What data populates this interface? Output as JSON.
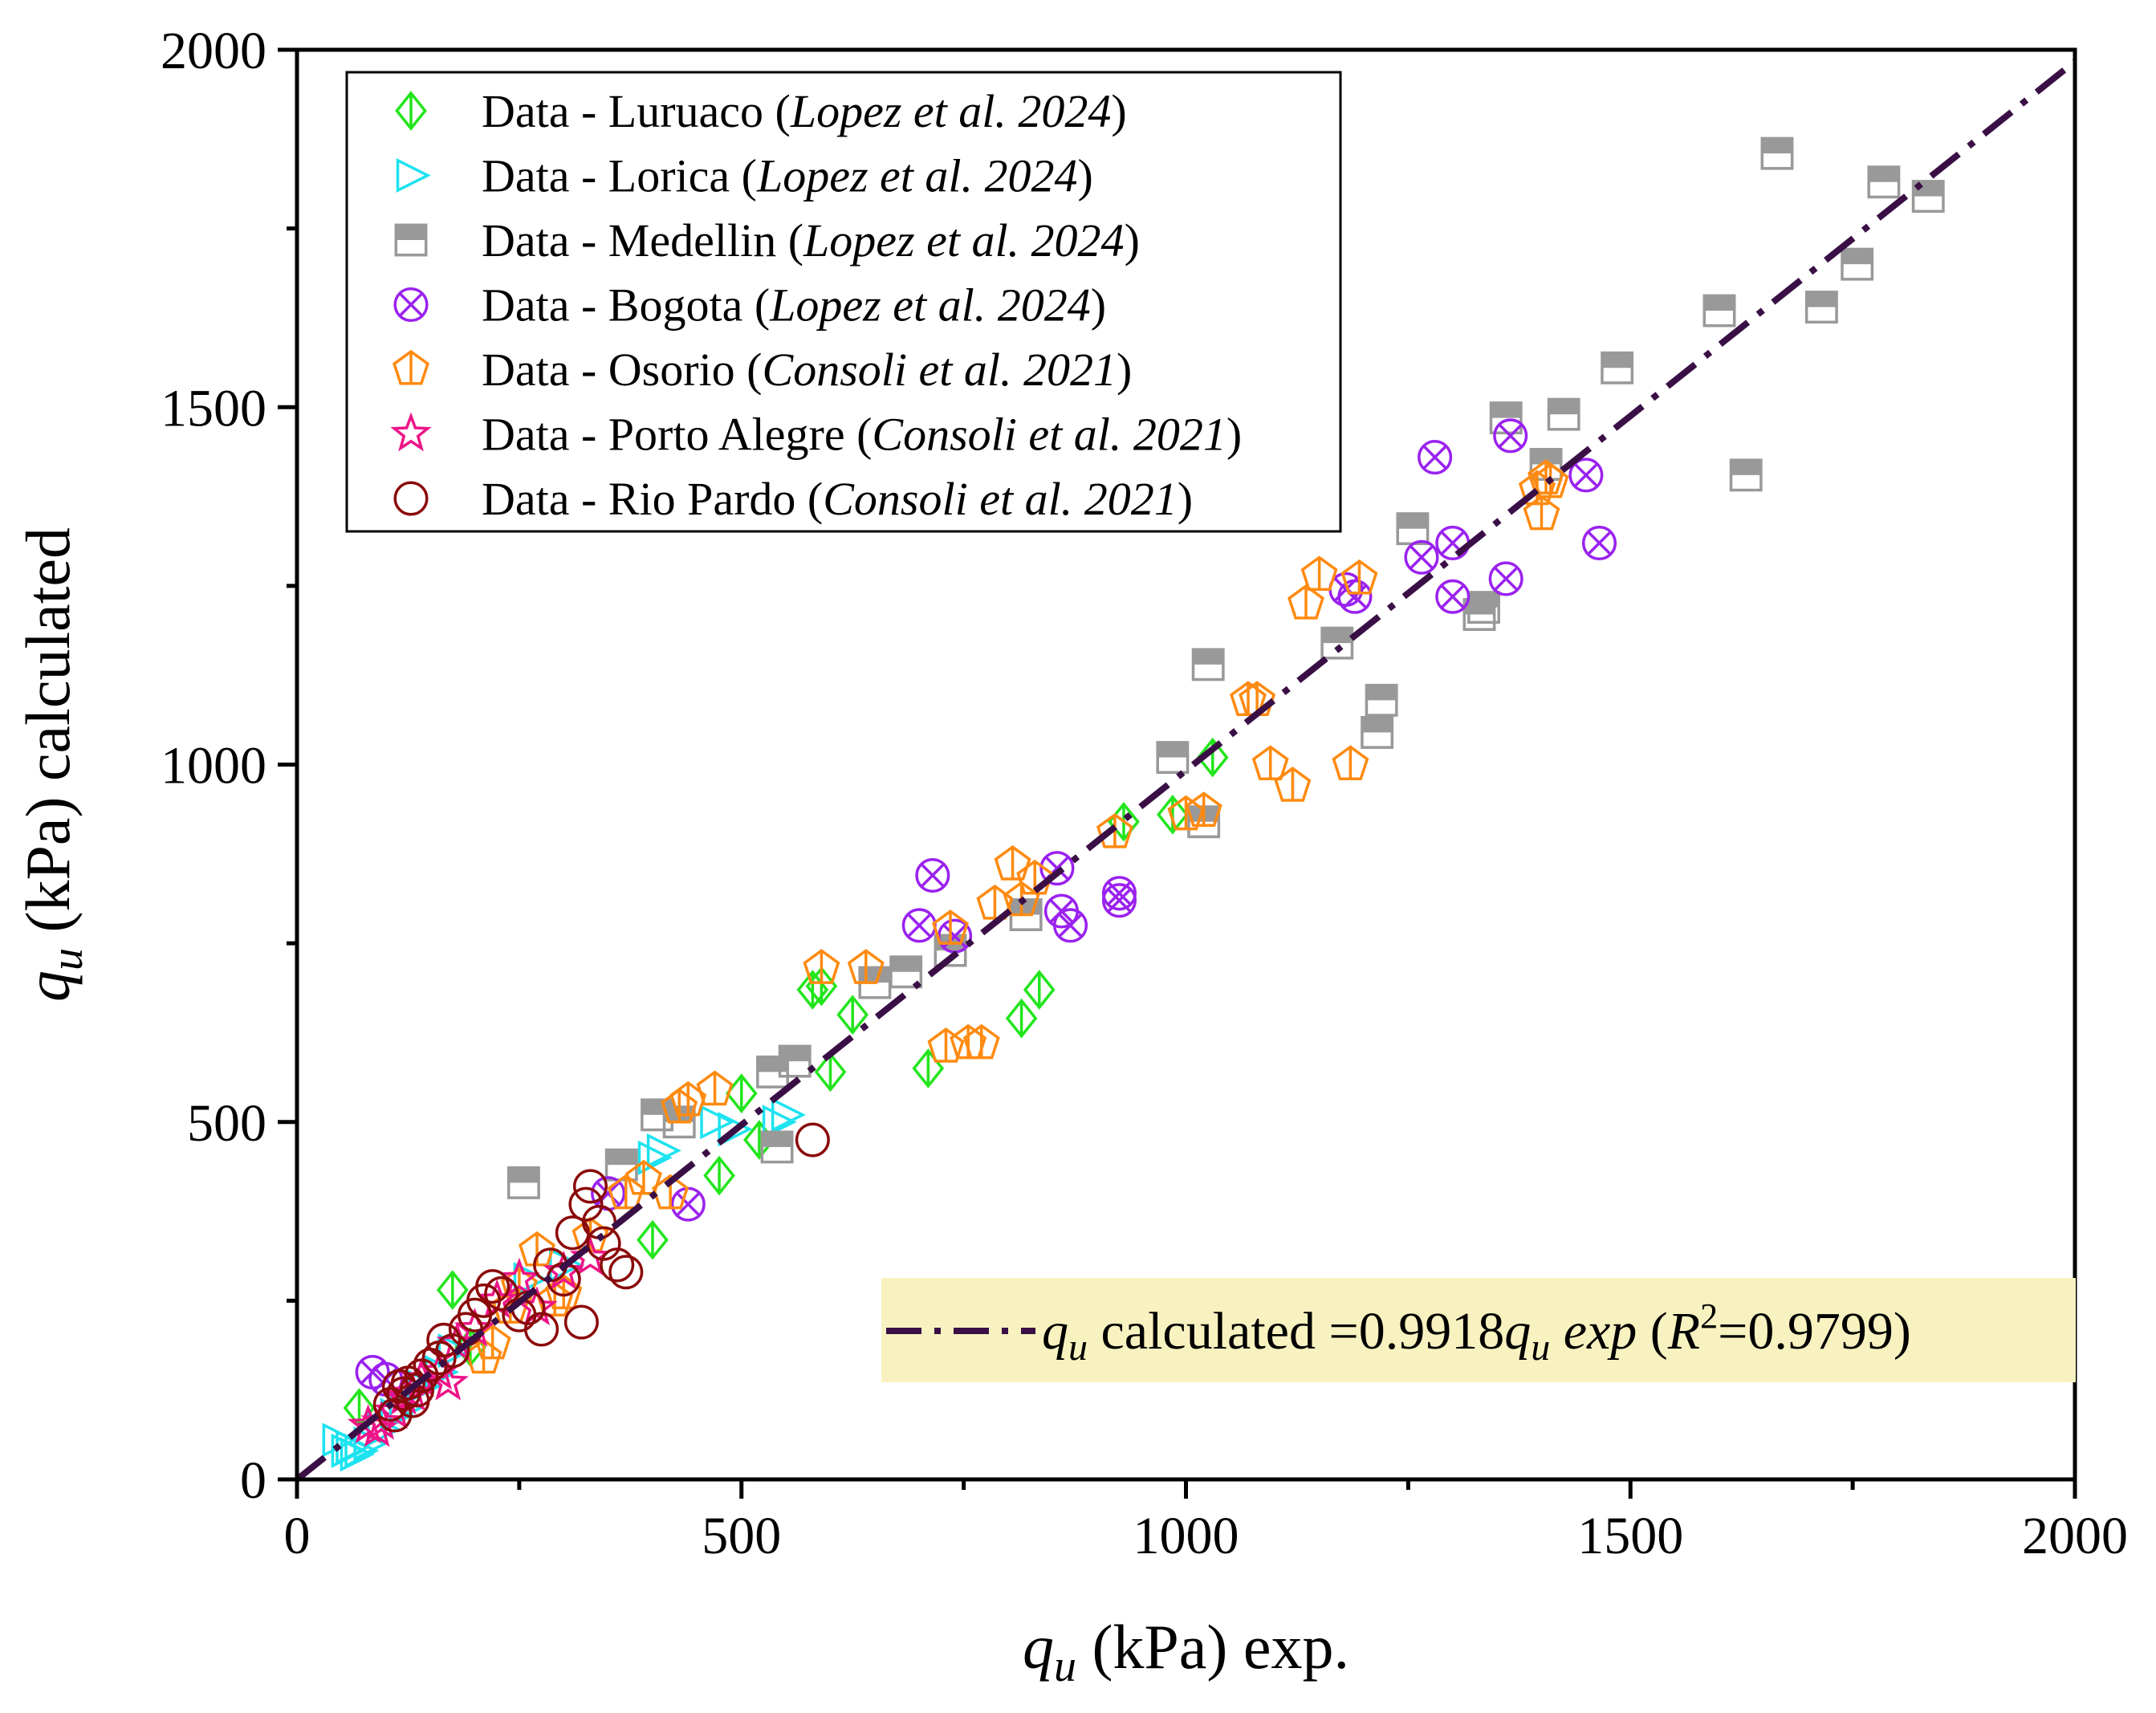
{
  "chart_data": {
    "type": "scatter",
    "title": "",
    "xlabel": {
      "symbol": "q",
      "sub": "u",
      "rest": " (kPa) exp."
    },
    "ylabel": {
      "symbol": "q",
      "sub": "u",
      "rest": " (kPa) calculated"
    },
    "xlim": [
      0,
      2000
    ],
    "ylim": [
      0,
      2000
    ],
    "x_ticks": [
      "0",
      "500",
      "1000",
      "1500",
      "2000"
    ],
    "y_ticks": [
      "0",
      "500",
      "1000",
      "1500",
      "2000"
    ],
    "grid": false,
    "legend_position": "top-left",
    "series": [
      {
        "name": "Luruaco",
        "label_plain": "Data - Luruaco (",
        "label_ref": "Lopez et al. 2024",
        "label_close": ")",
        "marker": "diamond",
        "color": "#22e51c",
        "points": [
          [
            70,
            100
          ],
          [
            175,
            265
          ],
          [
            195,
            185
          ],
          [
            400,
            335
          ],
          [
            475,
            425
          ],
          [
            500,
            540
          ],
          [
            520,
            475
          ],
          [
            580,
            685
          ],
          [
            590,
            690
          ],
          [
            600,
            570
          ],
          [
            625,
            650
          ],
          [
            710,
            575
          ],
          [
            815,
            645
          ],
          [
            835,
            685
          ],
          [
            930,
            920
          ],
          [
            985,
            930
          ],
          [
            1030,
            1010
          ]
        ]
      },
      {
        "name": "Lorica",
        "label_plain": "Data - Lorica (",
        "label_ref": "Lopez et al. 2024",
        "label_close": ")",
        "marker": "triangle-right",
        "color": "#1de3f0",
        "points": [
          [
            45,
            55
          ],
          [
            55,
            40
          ],
          [
            60,
            45
          ],
          [
            65,
            35
          ],
          [
            70,
            40
          ],
          [
            80,
            50
          ],
          [
            95,
            70
          ],
          [
            110,
            90
          ],
          [
            120,
            100
          ],
          [
            140,
            130
          ],
          [
            160,
            150
          ],
          [
            175,
            180
          ],
          [
            260,
            280
          ],
          [
            300,
            300
          ],
          [
            400,
            450
          ],
          [
            410,
            460
          ],
          [
            470,
            500
          ],
          [
            490,
            490
          ],
          [
            540,
            500
          ],
          [
            550,
            510
          ]
        ]
      },
      {
        "name": "Medellin",
        "label_plain": "Data - Medellin (",
        "label_ref": "Lopez et al. 2024",
        "label_close": ")",
        "marker": "square-half",
        "color": "#999999",
        "points": [
          [
            255,
            415
          ],
          [
            365,
            440
          ],
          [
            405,
            510
          ],
          [
            430,
            500
          ],
          [
            535,
            570
          ],
          [
            540,
            465
          ],
          [
            560,
            585
          ],
          [
            650,
            695
          ],
          [
            685,
            710
          ],
          [
            735,
            740
          ],
          [
            820,
            790
          ],
          [
            985,
            1010
          ],
          [
            1020,
            920
          ],
          [
            1025,
            1140
          ],
          [
            1170,
            1170
          ],
          [
            1215,
            1045
          ],
          [
            1220,
            1090
          ],
          [
            1255,
            1330
          ],
          [
            1330,
            1210
          ],
          [
            1335,
            1220
          ],
          [
            1360,
            1485
          ],
          [
            1405,
            1420
          ],
          [
            1425,
            1490
          ],
          [
            1485,
            1555
          ],
          [
            1600,
            1635
          ],
          [
            1630,
            1405
          ],
          [
            1665,
            1855
          ],
          [
            1715,
            1640
          ],
          [
            1755,
            1700
          ],
          [
            1785,
            1815
          ],
          [
            1835,
            1795
          ]
        ]
      },
      {
        "name": "Bogota",
        "label_plain": "Data - Bogota (",
        "label_ref": "Lopez et al. 2024",
        "label_close": ")",
        "marker": "circle-x",
        "color": "#9a22ee",
        "points": [
          [
            85,
            150
          ],
          [
            100,
            140
          ],
          [
            350,
            400
          ],
          [
            440,
            385
          ],
          [
            700,
            775
          ],
          [
            715,
            845
          ],
          [
            740,
            760
          ],
          [
            855,
            855
          ],
          [
            860,
            795
          ],
          [
            870,
            775
          ],
          [
            925,
            810
          ],
          [
            925,
            820
          ],
          [
            1180,
            1245
          ],
          [
            1190,
            1235
          ],
          [
            1265,
            1290
          ],
          [
            1280,
            1430
          ],
          [
            1300,
            1310
          ],
          [
            1300,
            1235
          ],
          [
            1360,
            1260
          ],
          [
            1365,
            1460
          ],
          [
            1450,
            1405
          ],
          [
            1465,
            1310
          ]
        ]
      },
      {
        "name": "Osorio",
        "label_plain": "Data - Osorio (",
        "label_ref": "Consoli et al. 2021",
        "label_close": ")",
        "marker": "pentagon",
        "color": "#ff8a10",
        "points": [
          [
            210,
            170
          ],
          [
            220,
            190
          ],
          [
            240,
            240
          ],
          [
            250,
            270
          ],
          [
            270,
            320
          ],
          [
            290,
            250
          ],
          [
            300,
            260
          ],
          [
            330,
            340
          ],
          [
            370,
            400
          ],
          [
            390,
            420
          ],
          [
            420,
            400
          ],
          [
            430,
            520
          ],
          [
            440,
            530
          ],
          [
            470,
            545
          ],
          [
            590,
            715
          ],
          [
            640,
            715
          ],
          [
            730,
            605
          ],
          [
            735,
            770
          ],
          [
            755,
            610
          ],
          [
            770,
            610
          ],
          [
            785,
            805
          ],
          [
            805,
            860
          ],
          [
            815,
            810
          ],
          [
            830,
            840
          ],
          [
            920,
            905
          ],
          [
            1000,
            930
          ],
          [
            1020,
            935
          ],
          [
            1070,
            1090
          ],
          [
            1080,
            1090
          ],
          [
            1095,
            1000
          ],
          [
            1120,
            970
          ],
          [
            1135,
            1225
          ],
          [
            1150,
            1265
          ],
          [
            1185,
            1000
          ],
          [
            1195,
            1260
          ],
          [
            1395,
            1385
          ],
          [
            1400,
            1350
          ],
          [
            1405,
            1400
          ],
          [
            1410,
            1395
          ]
        ]
      },
      {
        "name": "Porto Alegre",
        "label_plain": "Data - Porto Alegre (",
        "label_ref": "Consoli et al. 2021",
        "label_close": ")",
        "marker": "star",
        "color": "#ee1488",
        "points": [
          [
            80,
            75
          ],
          [
            90,
            70
          ],
          [
            95,
            80
          ],
          [
            110,
            95
          ],
          [
            120,
            115
          ],
          [
            130,
            120
          ],
          [
            140,
            140
          ],
          [
            160,
            150
          ],
          [
            170,
            135
          ],
          [
            180,
            190
          ],
          [
            200,
            210
          ],
          [
            225,
            250
          ],
          [
            250,
            280
          ],
          [
            270,
            240
          ],
          [
            300,
            290
          ],
          [
            330,
            310
          ]
        ]
      },
      {
        "name": "Rio Pardo",
        "label_plain": "Data - Rio Pardo (",
        "label_ref": "Consoli et al. 2021",
        "label_close": ")",
        "marker": "circle",
        "color": "#8b0a0a",
        "points": [
          [
            105,
            105
          ],
          [
            110,
            90
          ],
          [
            115,
            130
          ],
          [
            120,
            120
          ],
          [
            125,
            135
          ],
          [
            130,
            110
          ],
          [
            135,
            125
          ],
          [
            140,
            145
          ],
          [
            150,
            160
          ],
          [
            160,
            170
          ],
          [
            165,
            195
          ],
          [
            175,
            180
          ],
          [
            190,
            210
          ],
          [
            200,
            230
          ],
          [
            210,
            250
          ],
          [
            220,
            270
          ],
          [
            230,
            260
          ],
          [
            250,
            230
          ],
          [
            260,
            240
          ],
          [
            275,
            210
          ],
          [
            285,
            300
          ],
          [
            300,
            280
          ],
          [
            310,
            345
          ],
          [
            320,
            220
          ],
          [
            325,
            385
          ],
          [
            330,
            410
          ],
          [
            340,
            360
          ],
          [
            345,
            330
          ],
          [
            360,
            300
          ],
          [
            370,
            290
          ],
          [
            580,
            475
          ]
        ]
      }
    ],
    "fit": {
      "slope": 0.9918,
      "r2": 0.9799,
      "color": "#3a0f45",
      "line_style": "dash-dot",
      "label": {
        "sym1": "q",
        "sub1": "u",
        "mid": " calculated  =0.9918",
        "sym2": "q",
        "sub2": "u",
        "exp": " exp",
        "r_open": "  (",
        "r_sym": "R",
        "r_sup": "2",
        "r_val": "=0.9799)"
      },
      "box_color": "#f8f2c0"
    }
  }
}
